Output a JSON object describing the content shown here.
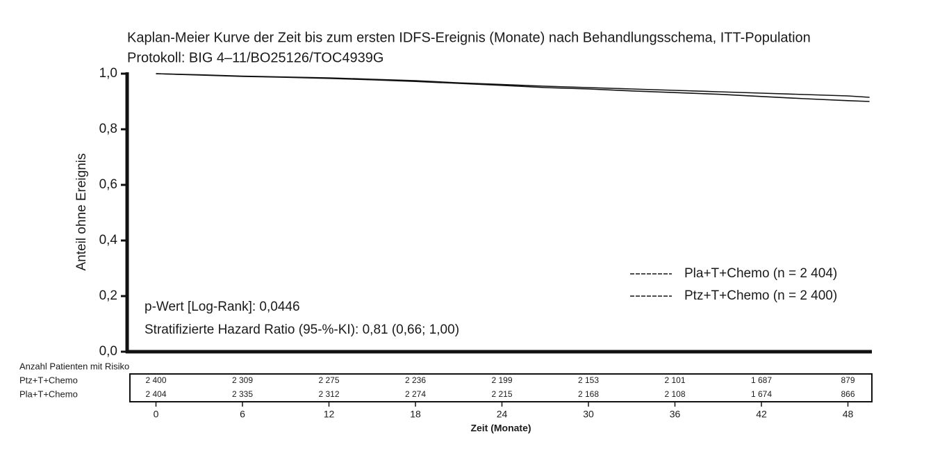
{
  "chart_data": {
    "type": "line",
    "title": "Kaplan-Meier Kurve der Zeit bis zum ersten IDFS-Ereignis (Monate) nach Behandlungsschema, ITT-Population",
    "subtitle": "Protokoll: BIG 4–11/BO25126/TOC4939G",
    "y_label": "Anteil ohne Ereignis",
    "x_label": "Zeit (Monate)",
    "x": [
      0,
      3,
      6,
      9,
      12,
      15,
      18,
      21,
      24,
      27,
      30,
      33,
      36,
      39,
      42,
      45,
      48,
      49.5
    ],
    "series": [
      {
        "name": "Pla+T+Chemo (n = 2 404)",
        "color": "#111111",
        "values": [
          1.0,
          0.995,
          0.99,
          0.987,
          0.983,
          0.978,
          0.972,
          0.965,
          0.958,
          0.95,
          0.945,
          0.938,
          0.932,
          0.926,
          0.918,
          0.91,
          0.903,
          0.9
        ]
      },
      {
        "name": "Ptz+T+Chemo (n = 2 400)",
        "color": "#111111",
        "values": [
          1.0,
          0.996,
          0.991,
          0.988,
          0.985,
          0.98,
          0.975,
          0.967,
          0.961,
          0.955,
          0.95,
          0.945,
          0.94,
          0.935,
          0.93,
          0.925,
          0.92,
          0.915
        ]
      }
    ],
    "xlim": [
      -2,
      50
    ],
    "xticks": [
      0,
      6,
      12,
      18,
      24,
      30,
      36,
      42,
      48
    ],
    "ylim": [
      0,
      1
    ],
    "yticks": [
      {
        "value": 0,
        "label": "0,0"
      },
      {
        "value": 0.2,
        "label": "0,2"
      },
      {
        "value": 0.4,
        "label": "0,4"
      },
      {
        "value": 0.6,
        "label": "0,6"
      },
      {
        "value": 0.8,
        "label": "0,8"
      },
      {
        "value": 1,
        "label": "1,0"
      }
    ],
    "legend_position": "lower right",
    "annotations": [
      "p-Wert [Log-Rank]: 0,0446",
      "Stratifizierte Hazard Ratio (95-%-KI): 0,81 (0,66; 1,00)"
    ],
    "risk_table": {
      "title": "Anzahl Patienten mit Risiko",
      "rows": [
        {
          "name": "Ptz+T+Chemo",
          "values": [
            2400,
            2309,
            2275,
            2236,
            2199,
            2153,
            2101,
            1687,
            879
          ],
          "value_labels": [
            "2 400",
            "2 309",
            "2 275",
            "2 236",
            "2 199",
            "2 153",
            "2 101",
            "1 687",
            "879"
          ]
        },
        {
          "name": "Pla+T+Chemo",
          "values": [
            2404,
            2335,
            2312,
            2274,
            2215,
            2168,
            2108,
            1674,
            866
          ],
          "value_labels": [
            "2 404",
            "2 335",
            "2 312",
            "2 274",
            "2 215",
            "2 168",
            "2 108",
            "1 674",
            "866"
          ]
        }
      ]
    }
  }
}
